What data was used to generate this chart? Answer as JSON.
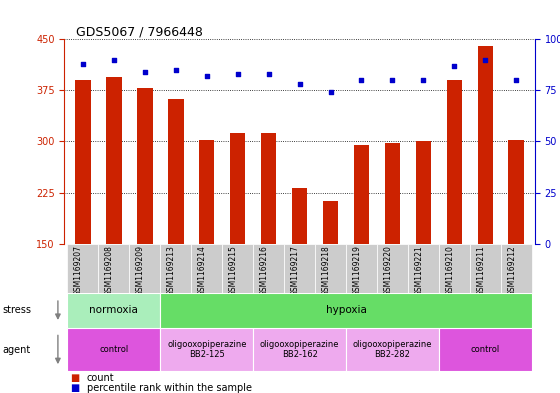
{
  "title": "GDS5067 / 7966448",
  "samples": [
    "GSM1169207",
    "GSM1169208",
    "GSM1169209",
    "GSM1169213",
    "GSM1169214",
    "GSM1169215",
    "GSM1169216",
    "GSM1169217",
    "GSM1169218",
    "GSM1169219",
    "GSM1169220",
    "GSM1169221",
    "GSM1169210",
    "GSM1169211",
    "GSM1169212"
  ],
  "counts": [
    390,
    395,
    378,
    362,
    302,
    312,
    312,
    232,
    212,
    295,
    298,
    301,
    390,
    440,
    302
  ],
  "percentiles": [
    88,
    90,
    84,
    85,
    82,
    83,
    83,
    78,
    74,
    80,
    80,
    80,
    87,
    90,
    80
  ],
  "ylim_left": [
    150,
    450
  ],
  "ylim_right": [
    0,
    100
  ],
  "yticks_left": [
    150,
    225,
    300,
    375,
    450
  ],
  "yticks_right": [
    0,
    25,
    50,
    75,
    100
  ],
  "bar_color": "#cc2200",
  "dot_color": "#0000cc",
  "grid_color": "#000000",
  "stress_groups": [
    {
      "label": "normoxia",
      "start": 0,
      "end": 3,
      "color": "#aaeebb"
    },
    {
      "label": "hypoxia",
      "start": 3,
      "end": 15,
      "color": "#66dd66"
    }
  ],
  "agent_groups": [
    {
      "label": "control",
      "start": 0,
      "end": 3,
      "color": "#dd55dd"
    },
    {
      "label": "oligooxopiperazine\nBB2-125",
      "start": 3,
      "end": 6,
      "color": "#eeaaee"
    },
    {
      "label": "oligooxopiperazine\nBB2-162",
      "start": 6,
      "end": 9,
      "color": "#eeaaee"
    },
    {
      "label": "oligooxopiperazine\nBB2-282",
      "start": 9,
      "end": 12,
      "color": "#eeaaee"
    },
    {
      "label": "control",
      "start": 12,
      "end": 15,
      "color": "#dd55dd"
    }
  ],
  "legend_count_label": "count",
  "legend_pct_label": "percentile rank within the sample",
  "bar_width": 0.5,
  "tick_bg_color": "#cccccc"
}
